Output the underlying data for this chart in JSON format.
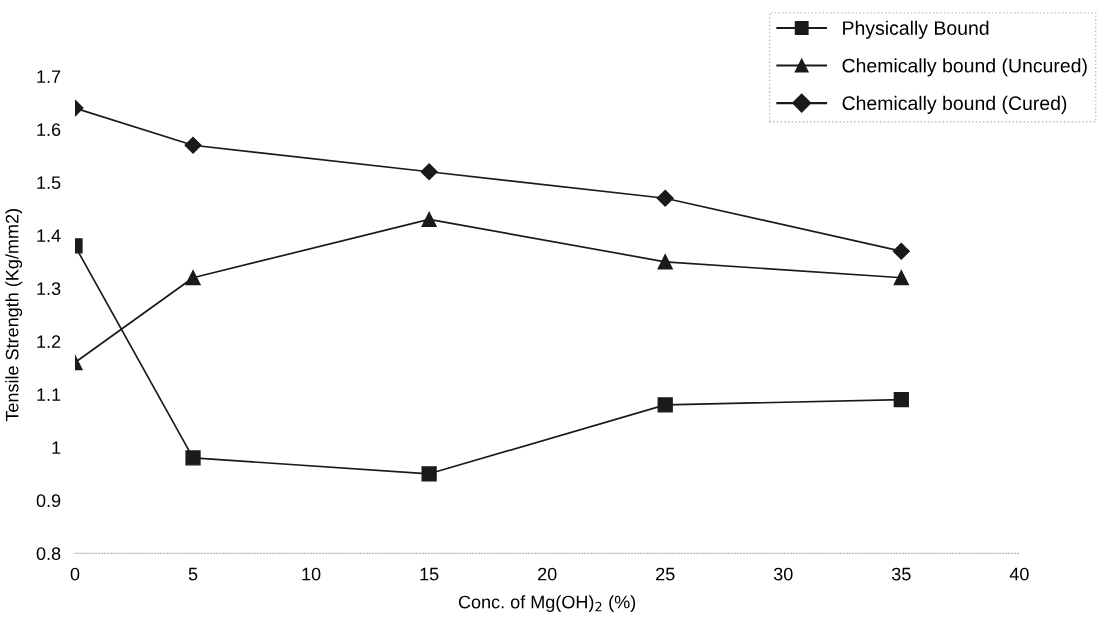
{
  "chart_data": {
    "type": "line",
    "xlabel": "Conc. of Mg(OH)$_{2}$ (%)",
    "ylabel": "Tensile Strength (Kg/mm2)",
    "x": [
      0,
      5,
      15,
      25,
      35
    ],
    "series": [
      {
        "name": "Physically Bound",
        "color": "#1a1a1a",
        "marker": "square",
        "values": [
          1.38,
          0.98,
          0.95,
          1.08,
          1.09
        ]
      },
      {
        "name": "Chemically bound (Uncured)",
        "color": "#1a1a1a",
        "marker": "triangle",
        "values": [
          1.16,
          1.32,
          1.43,
          1.35,
          1.32
        ]
      },
      {
        "name": "Chemically bound (Cured)",
        "color": "#1a1a1a",
        "marker": "diamond",
        "values": [
          1.64,
          1.57,
          1.52,
          1.47,
          1.37
        ]
      }
    ],
    "xlim": [
      0,
      40
    ],
    "xticks": [
      0,
      5,
      10,
      15,
      20,
      25,
      30,
      35,
      40
    ],
    "ylim": [
      0.8,
      1.7
    ],
    "yticks": [
      0.8,
      0.9,
      1,
      1.1,
      1.2,
      1.3,
      1.4,
      1.5,
      1.6,
      1.7
    ],
    "grid": false,
    "legend": "top right",
    "line_style": "solid"
  }
}
